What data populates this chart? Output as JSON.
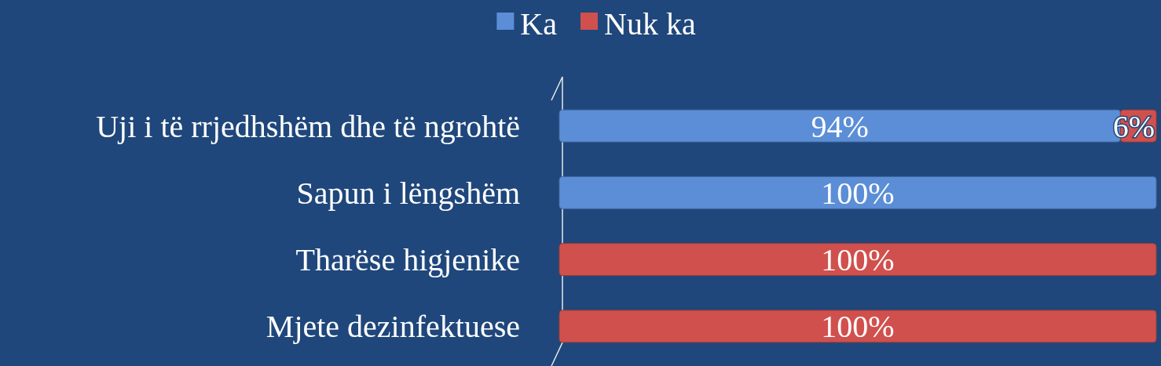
{
  "chart_data": {
    "type": "bar",
    "orientation": "horizontal",
    "stacked": true,
    "categories": [
      "Uji i të rrjedhshëm dhe të ngrohtë",
      "Sapun i lëngshëm",
      "Tharëse higjenike",
      "Mjete dezinfektuese"
    ],
    "series": [
      {
        "name": "Ka",
        "color": "#5b8ed6",
        "values": [
          94,
          100,
          0,
          0
        ],
        "value_labels": [
          "94%",
          "100%",
          null,
          null
        ]
      },
      {
        "name": "Nuk ka",
        "color": "#d0504d",
        "values": [
          6,
          0,
          100,
          100
        ],
        "value_labels": [
          "6%",
          null,
          "100%",
          "100%"
        ]
      }
    ],
    "xlim": [
      0,
      100
    ],
    "tick_labels": "y",
    "legend": "top"
  }
}
